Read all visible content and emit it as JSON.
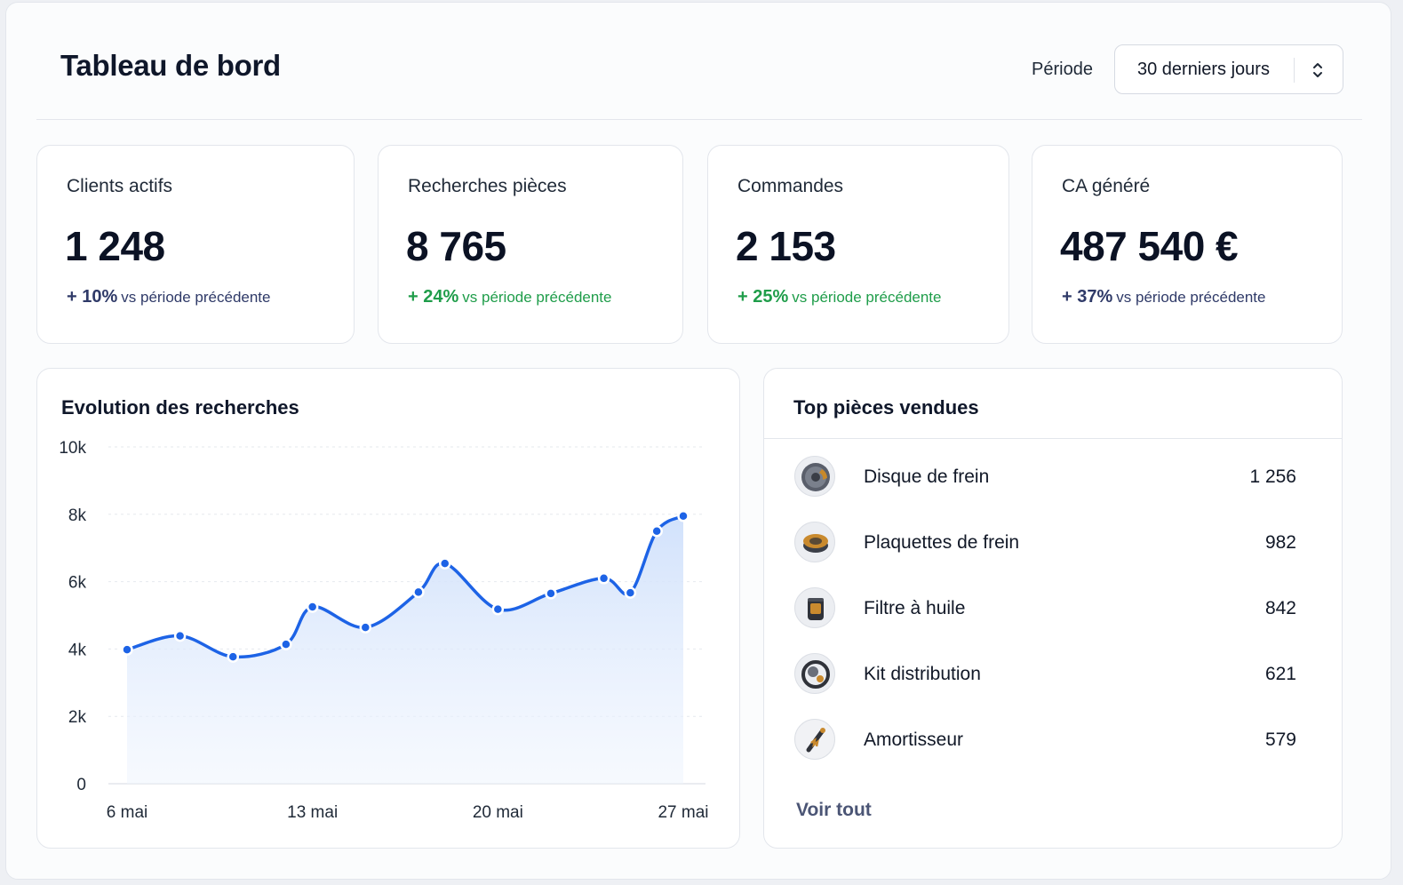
{
  "header": {
    "title": "Tableau de bord",
    "period_label": "Période",
    "period_value": "30 derniers jours"
  },
  "kpis": [
    {
      "label": "Clients actifs",
      "value": "1 248",
      "delta_pct": "+ 10%",
      "delta_text": "vs période précédente",
      "color": "#2f3a68"
    },
    {
      "label": "Recherches pièces",
      "value": "8 765",
      "delta_pct": "+ 24%",
      "delta_text": "vs période précédente",
      "color": "#1f9d4a"
    },
    {
      "label": "Commandes",
      "value": "2 153",
      "delta_pct": "+ 25%",
      "delta_text": "vs période précédente",
      "color": "#1f9d4a"
    },
    {
      "label": "CA généré",
      "value": "487 540 €",
      "delta_pct": "+ 37%",
      "delta_text": "vs période précédente",
      "color": "#2f3a68"
    }
  ],
  "chart_card": {
    "title": "Evolution des recherches"
  },
  "chart_data": {
    "type": "area",
    "title": "Evolution des recherches",
    "xlabel": "",
    "ylabel": "",
    "ylim": [
      0,
      10000
    ],
    "y_ticks": [
      "0",
      "2k",
      "4k",
      "6k",
      "8k",
      "10k"
    ],
    "x_ticks": [
      "6 mai",
      "13 mai",
      "20 mai",
      "27 mai"
    ],
    "grid": true,
    "line_color": "#1d63e6",
    "points": [
      {
        "x": "6 mai",
        "y": 3980
      },
      {
        "x": "8 mai",
        "y": 4390
      },
      {
        "x": "10 mai",
        "y": 3770
      },
      {
        "x": "12 mai",
        "y": 4140
      },
      {
        "x": "13 mai",
        "y": 5250
      },
      {
        "x": "15 mai",
        "y": 4640
      },
      {
        "x": "17 mai",
        "y": 5690
      },
      {
        "x": "18 mai",
        "y": 6540
      },
      {
        "x": "20 mai",
        "y": 5180
      },
      {
        "x": "22 mai",
        "y": 5650
      },
      {
        "x": "24 mai",
        "y": 6100
      },
      {
        "x": "25 mai",
        "y": 5670
      },
      {
        "x": "26 mai",
        "y": 7500
      },
      {
        "x": "27 mai",
        "y": 7950
      }
    ]
  },
  "top_parts": {
    "title": "Top pièces vendues",
    "items": [
      {
        "name": "Disque de frein",
        "count": "1 256",
        "icon": "brake-disc-icon"
      },
      {
        "name": "Plaquettes de frein",
        "count": "982",
        "icon": "brake-pads-icon"
      },
      {
        "name": "Filtre à huile",
        "count": "842",
        "icon": "oil-filter-icon"
      },
      {
        "name": "Kit distribution",
        "count": "621",
        "icon": "timing-kit-icon"
      },
      {
        "name": "Amortisseur",
        "count": "579",
        "icon": "shock-absorber-icon"
      }
    ],
    "see_all": "Voir tout"
  }
}
